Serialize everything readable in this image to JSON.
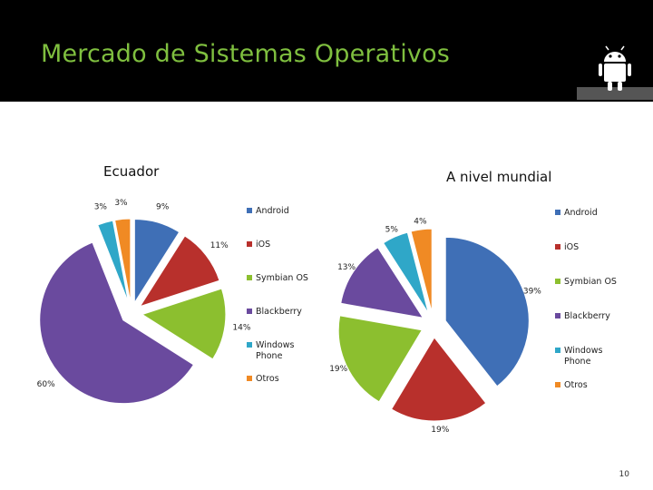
{
  "header": {
    "title": "Mercado de Sistemas Operativos"
  },
  "slide_number": "10",
  "chart_data": [
    {
      "type": "pie",
      "title": "Ecuador",
      "categories": [
        "Android",
        "iOS",
        "Symbian OS",
        "Blackberry",
        "Windows Phone",
        "Otros"
      ],
      "values": [
        9,
        11,
        14,
        60,
        3,
        3
      ],
      "labels": [
        "9%",
        "11%",
        "14%",
        "60%",
        "3%",
        "3%"
      ],
      "exploded": true,
      "legend": "right"
    },
    {
      "type": "pie",
      "title": "A nivel mundial",
      "categories": [
        "Android",
        "iOS",
        "Symbian OS",
        "Blackberry",
        "Windows Phone",
        "Otros"
      ],
      "values": [
        39,
        19,
        19,
        13,
        5,
        4
      ],
      "labels": [
        "39%",
        "19%",
        "19%",
        "13%",
        "5%",
        "4%"
      ],
      "exploded": true,
      "legend": "right"
    }
  ],
  "colors": {
    "Android": "#3f6fb6",
    "iOS": "#b8302c",
    "Symbian OS": "#8cbf2f",
    "Blackberry": "#6a4a9e",
    "Windows Phone": "#2fa7c8",
    "Otros": "#f08a24",
    "title": "#7fbf3f"
  },
  "icons": {
    "logo": "android-robot-icon"
  }
}
